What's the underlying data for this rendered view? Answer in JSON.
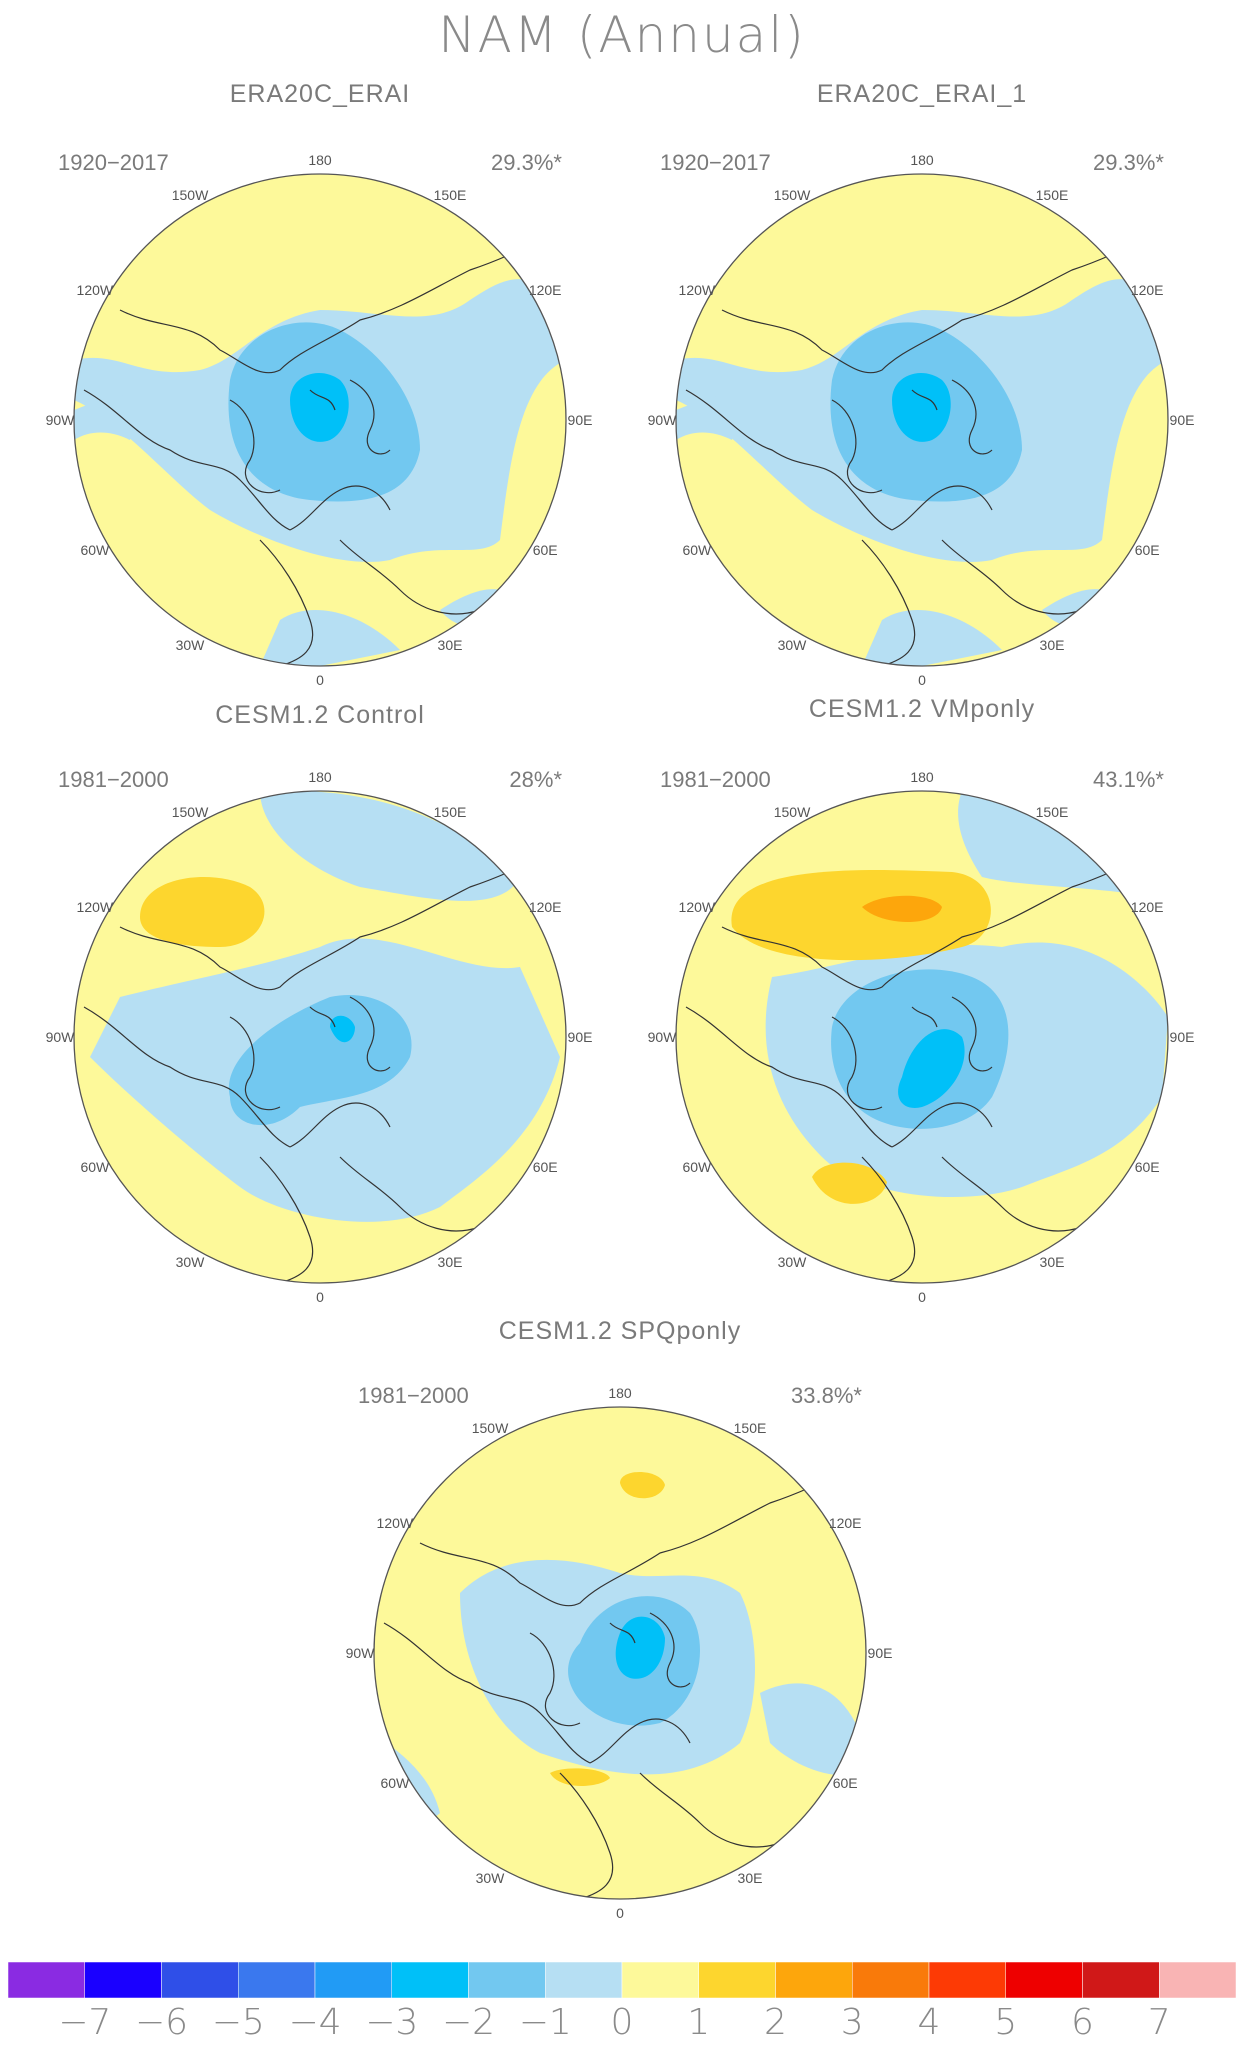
{
  "title": "NAM (Annual)",
  "panels": [
    {
      "id": "era20c-erai",
      "title": "ERA20C_ERAI",
      "period": "1920-2017",
      "percent": "29.3%*",
      "variant": "a"
    },
    {
      "id": "era20c-erai-1",
      "title": "ERA20C_ERAI_1",
      "period": "1920-2017",
      "percent": "29.3%*",
      "variant": "a"
    },
    {
      "id": "cesm-control",
      "title": "CESM1.2 Control",
      "period": "1981-2000",
      "percent": "28%*",
      "variant": "b"
    },
    {
      "id": "cesm-vmponly",
      "title": "CESM1.2 VMponly",
      "period": "1981-2000",
      "percent": "43.1%*",
      "variant": "c"
    },
    {
      "id": "cesm-spqponly",
      "title": "CESM1.2 SPQponly",
      "period": "1981-2000",
      "percent": "33.8%*",
      "variant": "d"
    }
  ],
  "longitude_labels": [
    "180",
    "150E",
    "120E",
    "90E",
    "60E",
    "30E",
    "0",
    "30W",
    "60W",
    "90W",
    "120W",
    "150W"
  ],
  "colorbar": {
    "labels": [
      "-7",
      "-6",
      "-5",
      "-4",
      "-3",
      "-2",
      "-1",
      "0",
      "1",
      "2",
      "3",
      "4",
      "5",
      "6",
      "7"
    ],
    "colors": [
      "#8a2be2",
      "#1a00ff",
      "#2f4fe8",
      "#3a78ee",
      "#219bf5",
      "#00c0f8",
      "#72c8f0",
      "#b6dff3",
      "#fdf99a",
      "#fdd62e",
      "#fda60c",
      "#f97a0a",
      "#fd3a05",
      "#ee0000",
      "#d01818",
      "#f9b4b4"
    ]
  },
  "legend_colors": {
    "ocean_neg1": "#b6dff3",
    "pos1": "#fdf99a",
    "neg2": "#72c8f0",
    "neg3": "#00c0f8",
    "pos2": "#fdd62e",
    "pos3": "#fda60c"
  }
}
